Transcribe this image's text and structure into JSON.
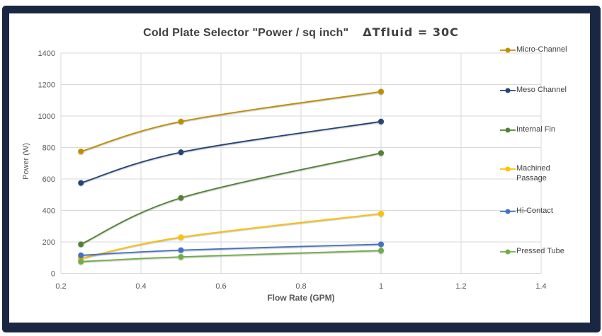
{
  "frame": {
    "border_color": "#1a2742",
    "background": "#ffffff"
  },
  "title": {
    "main": "Cold Plate Selector  \"Power / sq inch\"",
    "suffix": "ΔTfluid = 30C"
  },
  "chart_data": {
    "type": "line",
    "title": "Cold Plate Selector  \"Power / sq inch\"   ΔTfluid = 30C",
    "xlabel": "Flow Rate (GPM)",
    "ylabel": "Power (W)",
    "x": [
      0.25,
      0.5,
      1
    ],
    "series": [
      {
        "name": "Micro-Channel",
        "color": "#BF8F00",
        "values": [
          775,
          965,
          1155
        ]
      },
      {
        "name": "Meso Channel",
        "color": "#264478",
        "values": [
          575,
          770,
          965
        ]
      },
      {
        "name": "Internal Fin",
        "color": "#538135",
        "values": [
          185,
          480,
          765
        ]
      },
      {
        "name": "Machined Passage",
        "color": "#FFC000",
        "values": [
          95,
          230,
          380
        ]
      },
      {
        "name": "Hi-Contact",
        "color": "#4472C4",
        "values": [
          115,
          148,
          185
        ]
      },
      {
        "name": "Pressed Tube",
        "color": "#70AD47",
        "values": [
          75,
          105,
          145
        ]
      }
    ],
    "xlim": [
      0.2,
      1.4
    ],
    "ylim": [
      0,
      1400
    ],
    "xticks": [
      "0.2",
      "0.4",
      "0.6",
      "0.8",
      "1",
      "1.2",
      "1.4"
    ],
    "xtick_values": [
      0.2,
      0.4,
      0.6,
      0.8,
      1,
      1.2,
      1.4
    ],
    "yticks": [
      "0",
      "200",
      "400",
      "600",
      "800",
      "1000",
      "1200",
      "1400"
    ],
    "ytick_values": [
      0,
      200,
      400,
      600,
      800,
      1000,
      1200,
      1400
    ],
    "grid": true,
    "gridline_color": "#D9D9D9",
    "smooth": true,
    "legend_position": "right"
  },
  "colors": {
    "title_text": "#404040",
    "axis_text": "#595959",
    "legend_text": "#404040"
  }
}
